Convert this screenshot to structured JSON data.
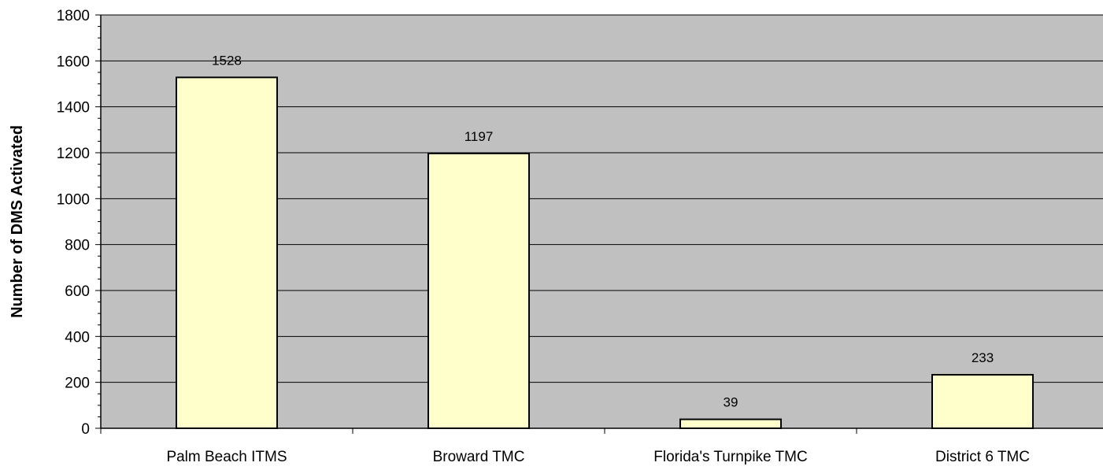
{
  "chart_data": {
    "type": "bar",
    "title": "",
    "xlabel": "",
    "ylabel": "Number of DMS Activated",
    "categories": [
      "Palm Beach ITMS",
      "Broward TMC",
      "Florida's Turnpike TMC",
      "District 6 TMC"
    ],
    "values": [
      1528,
      1197,
      39,
      233
    ],
    "data_labels": [
      "1528",
      "1197",
      "39",
      "233"
    ],
    "ylim": [
      0,
      1800
    ],
    "y_major_step": 200,
    "y_minor_step": 50,
    "y_ticks": [
      "0",
      "200",
      "400",
      "600",
      "800",
      "1000",
      "1200",
      "1400",
      "1600",
      "1800"
    ],
    "grid": true,
    "legend": "none",
    "colors": {
      "plot_background": "#c0c0c0",
      "bar_fill": "#ffffcc",
      "bar_stroke": "#000000",
      "gridline": "#000000"
    }
  }
}
